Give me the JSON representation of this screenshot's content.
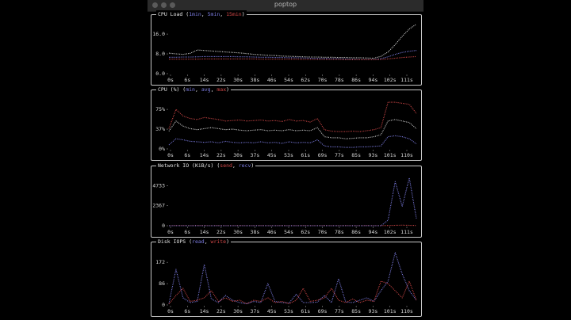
{
  "window": {
    "title": "poptop"
  },
  "colors": {
    "grey": "#cfcfcf",
    "blue": "#6b6be0",
    "red": "#d04040",
    "yellow": "#d8d4a0",
    "border": "#c8c8c8"
  },
  "panels": [
    {
      "id": "cpu-load",
      "title": {
        "main": "CPU Load (",
        "s1": "1min",
        "sep1": ", ",
        "s2": "5min",
        "sep2": ", ",
        "s3": "15min",
        "end": ")"
      },
      "chart_data": {
        "type": "line",
        "title": "CPU Load (1min, 5min, 15min)",
        "x_ticks": [
          "0s",
          "6s",
          "14s",
          "22s",
          "30s",
          "38s",
          "46s",
          "54s",
          "62s",
          "70s",
          "78s",
          "86s",
          "94s",
          "102s",
          "111s"
        ],
        "y_ticks": [
          "16.0",
          "8.0",
          "0.0"
        ],
        "ylim": [
          0,
          21
        ],
        "series": [
          {
            "name": "1min",
            "color": "#d8d8d8",
            "values": [
              8.5,
              8.2,
              8.0,
              8.4,
              9.8,
              9.6,
              9.4,
              9.2,
              9.0,
              8.8,
              8.6,
              8.3,
              8.0,
              7.8,
              7.6,
              7.5,
              7.3,
              7.2,
              7.1,
              7.0,
              6.9,
              6.9,
              6.8,
              6.8,
              6.7,
              6.7,
              6.6,
              6.6,
              6.5,
              6.4,
              7.2,
              9.0,
              12.0,
              15.5,
              18.5,
              20.5
            ]
          },
          {
            "name": "5min",
            "color": "#7b7be0",
            "values": [
              6.8,
              6.8,
              6.9,
              6.9,
              7.0,
              7.1,
              7.1,
              7.1,
              7.1,
              7.1,
              7.0,
              7.0,
              6.9,
              6.8,
              6.8,
              6.7,
              6.7,
              6.6,
              6.6,
              6.5,
              6.4,
              6.3,
              6.3,
              6.2,
              6.2,
              6.1,
              6.0,
              5.9,
              5.9,
              5.9,
              6.2,
              7.0,
              8.0,
              8.8,
              9.3,
              9.6
            ]
          },
          {
            "name": "15min",
            "color": "#d04747",
            "values": [
              6.0,
              6.0,
              6.0,
              6.0,
              6.0,
              6.1,
              6.1,
              6.1,
              6.1,
              6.1,
              6.1,
              6.1,
              6.1,
              6.0,
              6.0,
              6.0,
              6.0,
              6.0,
              6.0,
              5.9,
              5.9,
              5.9,
              5.9,
              5.9,
              5.9,
              5.8,
              5.8,
              5.8,
              5.8,
              5.8,
              5.9,
              6.1,
              6.4,
              6.7,
              6.9,
              7.1
            ]
          }
        ]
      }
    },
    {
      "id": "cpu-percent",
      "title": {
        "main": "CPU (%) (",
        "s1": "min",
        "sep1": ", ",
        "s2": "avg",
        "sep2": ", ",
        "s3": "max",
        "end": ")"
      },
      "chart_data": {
        "type": "line",
        "title": "CPU (%) (min, avg, max)",
        "x_ticks": [
          "0s",
          "6s",
          "14s",
          "22s",
          "30s",
          "37s",
          "45s",
          "53s",
          "61s",
          "69s",
          "77s",
          "85s",
          "93s",
          "101s",
          "110s"
        ],
        "y_ticks": [
          "75%",
          "37%",
          "0%"
        ],
        "ylim": [
          0,
          100
        ],
        "series": [
          {
            "name": "min",
            "color": "#7b7be0",
            "values": [
              8,
              20,
              18,
              15,
              14,
              13,
              14,
              12,
              15,
              13,
              12,
              13,
              12,
              14,
              12,
              13,
              11,
              14,
              12,
              13,
              12,
              18,
              6,
              4,
              4,
              3,
              3,
              4,
              4,
              5,
              6,
              24,
              26,
              24,
              20,
              10
            ]
          },
          {
            "name": "avg",
            "color": "#cfcfcf",
            "values": [
              35,
              55,
              45,
              40,
              38,
              40,
              42,
              40,
              38,
              39,
              37,
              36,
              37,
              38,
              36,
              37,
              36,
              38,
              36,
              37,
              36,
              42,
              24,
              22,
              22,
              20,
              21,
              22,
              22,
              24,
              28,
              55,
              58,
              55,
              52,
              40
            ]
          },
          {
            "name": "max",
            "color": "#d04747",
            "values": [
              40,
              78,
              65,
              60,
              58,
              62,
              60,
              58,
              55,
              56,
              57,
              55,
              56,
              57,
              55,
              56,
              54,
              58,
              55,
              56,
              53,
              60,
              38,
              35,
              34,
              34,
              35,
              34,
              36,
              38,
              42,
              92,
              92,
              90,
              88,
              70
            ]
          }
        ]
      }
    },
    {
      "id": "network-io",
      "title": {
        "main": "Network IO (KiB/s) (",
        "s1": "send",
        "sep1": ", ",
        "s2": "recv",
        "sep2": "",
        "s3": "",
        "end": ")"
      },
      "chart_data": {
        "type": "line",
        "title": "Network IO (KiB/s) (send, recv)",
        "x_ticks": [
          "0s",
          "6s",
          "14s",
          "22s",
          "30s",
          "38s",
          "46s",
          "54s",
          "62s",
          "70s",
          "78s",
          "86s",
          "94s",
          "102s",
          "111s"
        ],
        "y_ticks": [
          "4733",
          "2367",
          "0"
        ],
        "ylim": [
          0,
          5600
        ],
        "series": [
          {
            "name": "send",
            "color": "#d04747",
            "values": [
              20,
              30,
              25,
              20,
              25,
              30,
              20,
              25,
              20,
              20,
              25,
              20,
              20,
              25,
              20,
              20,
              25,
              20,
              20,
              25,
              20,
              20,
              25,
              20,
              20,
              25,
              20,
              20,
              25,
              20,
              20,
              30,
              40,
              60,
              40,
              30
            ]
          },
          {
            "name": "recv",
            "color": "#7b7be0",
            "values": [
              0,
              0,
              0,
              0,
              0,
              0,
              0,
              0,
              0,
              0,
              0,
              0,
              0,
              0,
              0,
              0,
              0,
              0,
              0,
              0,
              0,
              0,
              0,
              0,
              0,
              0,
              0,
              0,
              0,
              0,
              0,
              600,
              4800,
              2100,
              5200,
              800
            ]
          }
        ]
      }
    },
    {
      "id": "disk-iops",
      "title": {
        "main": "Disk IOPS (",
        "s1": "read",
        "sep1": ", ",
        "s2": "write",
        "sep2": "",
        "s3": "",
        "end": ")"
      },
      "chart_data": {
        "type": "line",
        "title": "Disk IOPS (read, write)",
        "x_ticks": [
          "0s",
          "6s",
          "14s",
          "22s",
          "30s",
          "37s",
          "45s",
          "53s",
          "61s",
          "69s",
          "77s",
          "85s",
          "93s",
          "101s",
          "110s"
        ],
        "y_ticks": [
          "172",
          "86",
          "0"
        ],
        "ylim": [
          0,
          230
        ],
        "series": [
          {
            "name": "read",
            "color": "#7b7be0",
            "values": [
              5,
              150,
              30,
              10,
              15,
              170,
              25,
              10,
              40,
              20,
              10,
              5,
              15,
              10,
              90,
              15,
              10,
              8,
              45,
              10,
              10,
              12,
              40,
              10,
              110,
              12,
              10,
              20,
              30,
              15,
              60,
              100,
              220,
              130,
              60,
              20
            ]
          },
          {
            "name": "write",
            "color": "#d04747",
            "values": [
              4,
              40,
              70,
              15,
              20,
              30,
              60,
              15,
              30,
              15,
              20,
              5,
              20,
              15,
              30,
              10,
              15,
              5,
              20,
              70,
              15,
              20,
              30,
              70,
              20,
              10,
              25,
              10,
              20,
              15,
              100,
              90,
              60,
              30,
              100,
              20
            ]
          }
        ]
      }
    }
  ]
}
